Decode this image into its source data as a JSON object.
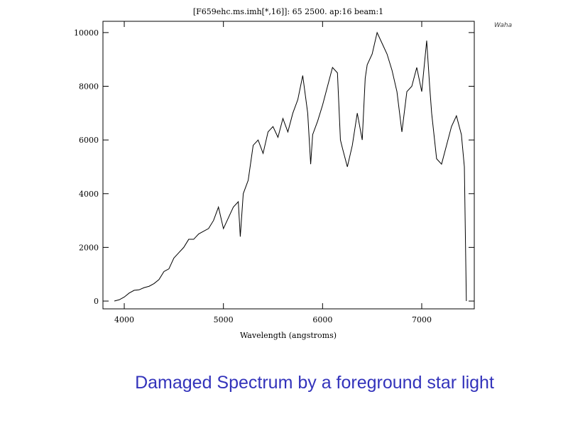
{
  "chart_data": {
    "type": "line",
    "title": "[F659ehc.ms.imh[*,16]]: 65 2500. ap:16 beam:1",
    "x_label": "Wavelength (angstroms)",
    "caption": "Damaged Spectrum by a foreground star light",
    "annotation": "Waha",
    "color": "#000000",
    "caption_color": "#3333bb",
    "x": [
      3900,
      3950,
      4000,
      4050,
      4100,
      4150,
      4200,
      4250,
      4300,
      4350,
      4400,
      4450,
      4500,
      4550,
      4600,
      4650,
      4700,
      4750,
      4800,
      4850,
      4900,
      4950,
      5000,
      5050,
      5100,
      5150,
      5170,
      5200,
      5250,
      5300,
      5350,
      5400,
      5450,
      5500,
      5550,
      5600,
      5650,
      5700,
      5750,
      5800,
      5850,
      5880,
      5900,
      5950,
      6000,
      6050,
      6100,
      6150,
      6180,
      6200,
      6250,
      6300,
      6350,
      6400,
      6430,
      6450,
      6500,
      6550,
      6600,
      6650,
      6700,
      6750,
      6800,
      6850,
      6900,
      6950,
      7000,
      7050,
      7080,
      7100,
      7150,
      7200,
      7250,
      7300,
      7350,
      7400,
      7430,
      7450
    ],
    "values": [
      0,
      50,
      150,
      300,
      400,
      420,
      500,
      550,
      650,
      800,
      1100,
      1200,
      1600,
      1800,
      2000,
      2300,
      2300,
      2500,
      2600,
      2700,
      3000,
      3500,
      2700,
      3100,
      3500,
      3700,
      2400,
      4000,
      4500,
      5800,
      6000,
      5500,
      6300,
      6500,
      6100,
      6800,
      6300,
      7000,
      7500,
      8400,
      7000,
      5100,
      6200,
      6700,
      7300,
      8000,
      8700,
      8500,
      6000,
      5700,
      5000,
      5800,
      7000,
      6000,
      8300,
      8800,
      9200,
      10000,
      9600,
      9200,
      8600,
      7800,
      6300,
      7800,
      8000,
      8700,
      7800,
      9700,
      8000,
      7000,
      5300,
      5100,
      5800,
      6500,
      6900,
      6200,
      5000,
      0
    ],
    "xlim": [
      3785,
      7530
    ],
    "ylim": [
      -290,
      10420
    ],
    "xticks": [
      4000,
      5000,
      6000,
      7000
    ],
    "yticks": [
      0,
      2000,
      4000,
      6000,
      8000,
      10000
    ]
  }
}
